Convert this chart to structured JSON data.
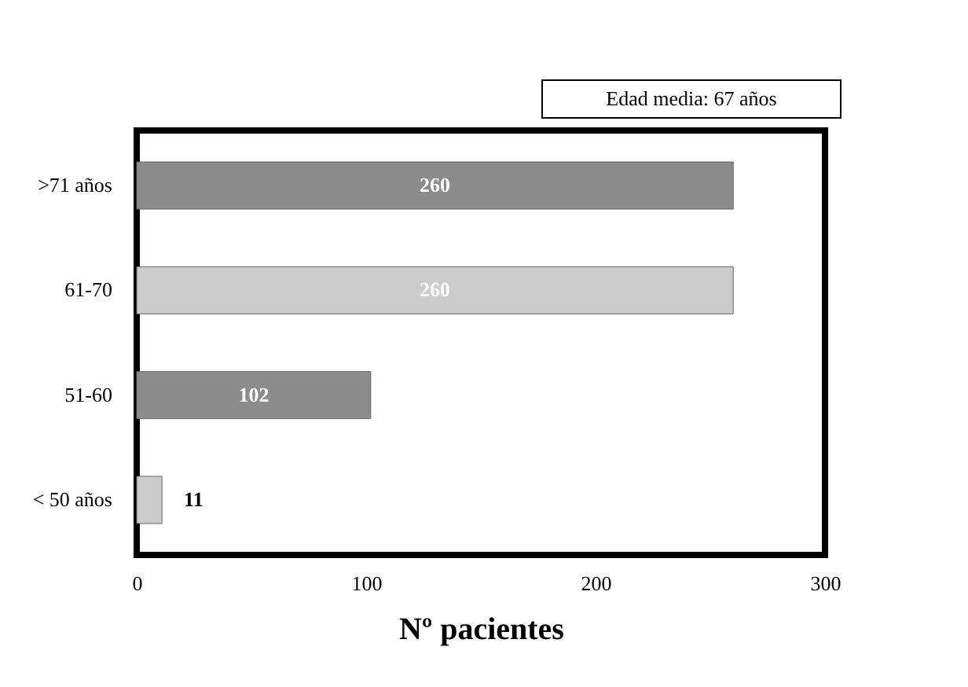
{
  "chart_data": {
    "type": "bar",
    "orientation": "horizontal",
    "categories": [
      ">71 años",
      "61-70",
      "51-60",
      "< 50 años"
    ],
    "values": [
      260,
      260,
      102,
      11
    ],
    "colors": [
      "#8c8c8c",
      "#cccccc",
      "#8c8c8c",
      "#cccccc"
    ],
    "xlim": [
      0,
      300
    ],
    "xticks": [
      0,
      100,
      200,
      300
    ],
    "xlabel": "Nº pacientes",
    "annotations": [
      "Edad media: 67 años"
    ],
    "data_labels": true,
    "grid": false,
    "legend": false
  }
}
